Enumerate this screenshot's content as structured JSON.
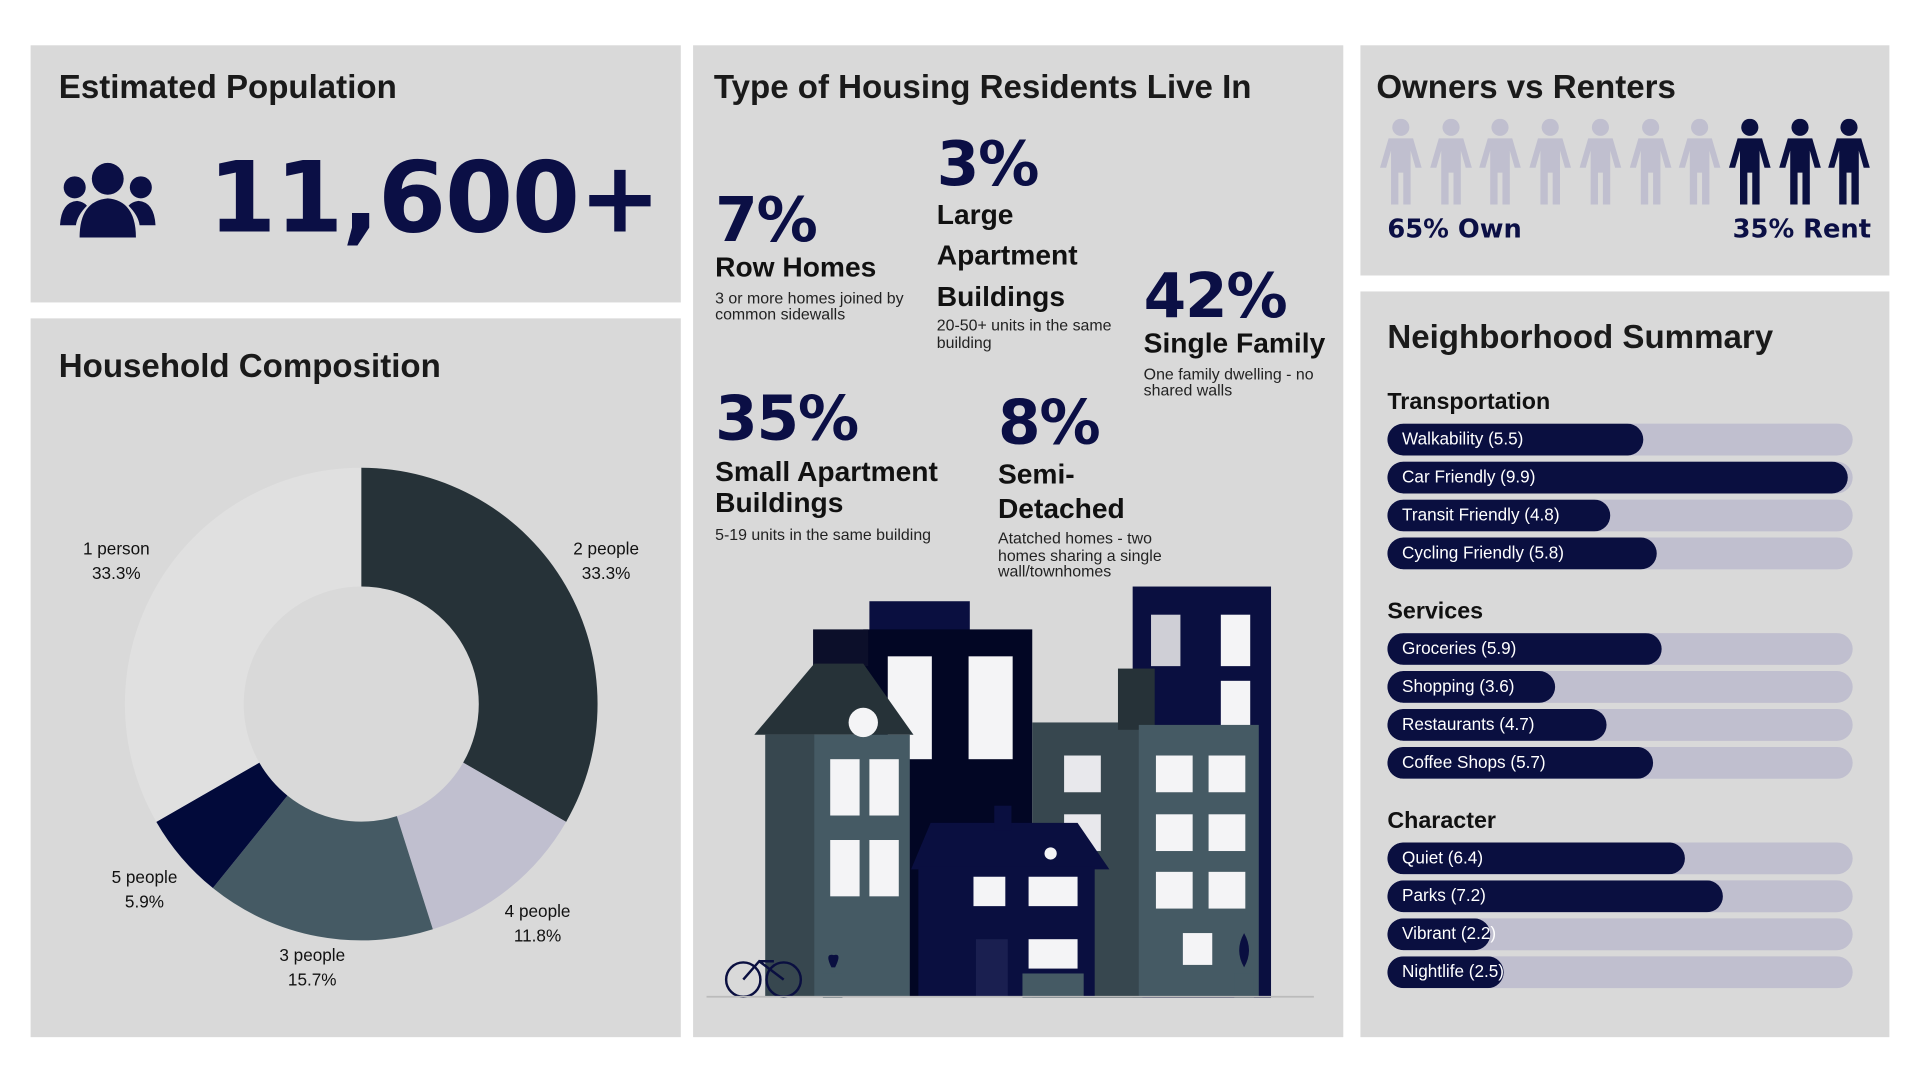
{
  "population": {
    "title": "Estimated Population",
    "value": "11,600+",
    "icon": "group-icon"
  },
  "household": {
    "title": "Household Composition",
    "chart_data": {
      "type": "pie",
      "donut": true,
      "categories": [
        "2 people",
        "4 people",
        "3 people",
        "5 people",
        "1 person"
      ],
      "values": [
        33.3,
        11.8,
        15.7,
        5.9,
        33.3
      ],
      "labels": [
        "33.3%",
        "11.8%",
        "15.7%",
        "5.9%",
        "33.3%"
      ],
      "colors": [
        "#263238",
        "#c0bfcf",
        "#455a64",
        "#020a3a",
        "#e0e0e0"
      ]
    }
  },
  "housing": {
    "title": "Type of Housing Residents Live In",
    "items": [
      {
        "pct": "7%",
        "name": "Row Homes",
        "desc": "3 or more homes joined by common sidewalls"
      },
      {
        "pct": "3%",
        "name": "Large Apartment Buildings",
        "desc": "20-50+ units in the same building"
      },
      {
        "pct": "42%",
        "name": "Single Family",
        "desc": "One family dwelling - no shared walls"
      },
      {
        "pct": "35%",
        "name": "Small Apartment Buildings",
        "desc": "5-19 units in the same building"
      },
      {
        "pct": "8%",
        "name": "Semi- Detached",
        "desc": "Atatched homes - two homes sharing a single wall/townhomes"
      }
    ]
  },
  "owners": {
    "title": "Owners vs Renters",
    "own_label": "65% Own",
    "rent_label": "35% Rent",
    "own_pct": 65,
    "rent_pct": 35,
    "own_color": "#c0bfcf",
    "rent_color": "#0a0f40"
  },
  "summary": {
    "title": "Neighborhood Summary",
    "max": 10,
    "sections": [
      {
        "name": "Transportation",
        "items": [
          {
            "label": "Walkability (5.5)",
            "value": 5.5
          },
          {
            "label": "Car Friendly (9.9)",
            "value": 9.9
          },
          {
            "label": "Transit Friendly (4.8)",
            "value": 4.8
          },
          {
            "label": "Cycling Friendly (5.8)",
            "value": 5.8
          }
        ]
      },
      {
        "name": "Services",
        "items": [
          {
            "label": "Groceries (5.9)",
            "value": 5.9
          },
          {
            "label": "Shopping (3.6)",
            "value": 3.6
          },
          {
            "label": "Restaurants (4.7)",
            "value": 4.7
          },
          {
            "label": "Coffee Shops (5.7)",
            "value": 5.7
          }
        ]
      },
      {
        "name": "Character",
        "items": [
          {
            "label": "Quiet (6.4)",
            "value": 6.4
          },
          {
            "label": "Parks (7.2)",
            "value": 7.2
          },
          {
            "label": "Vibrant (2.2)",
            "value": 2.2
          },
          {
            "label": "Nightlife (2.5)",
            "value": 2.5
          }
        ]
      }
    ]
  }
}
